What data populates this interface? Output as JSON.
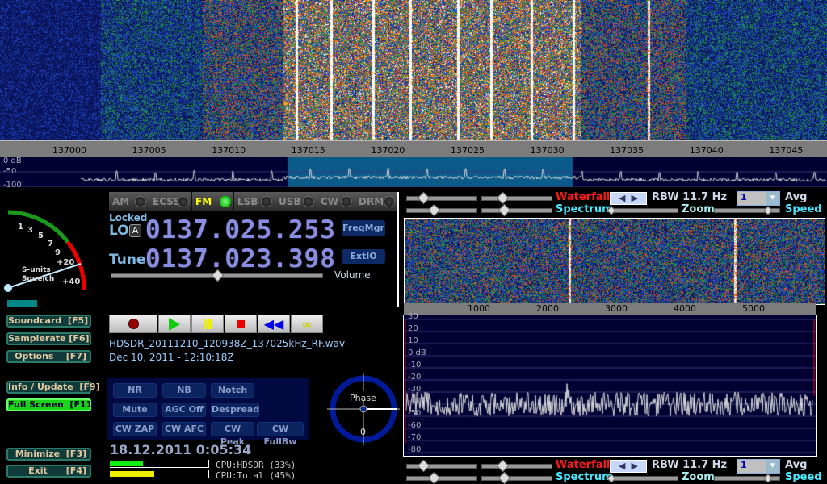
{
  "main_waterfall": {
    "freq_axis_labels": [
      "137000",
      "137005",
      "137010",
      "137015",
      "137020",
      "137025",
      "137030",
      "137035",
      "137040",
      "137045"
    ],
    "db_labels": [
      "0 dB",
      "-50",
      "-100"
    ],
    "passband_khz": [
      137013.6,
      137031.5
    ]
  },
  "smeter": {
    "scale_labels": [
      "1",
      "3",
      "5",
      "7",
      "9",
      "+20",
      "+40"
    ],
    "caption1": "S-units",
    "caption2": "Squelch"
  },
  "modes": [
    {
      "label": "AM",
      "active": false
    },
    {
      "label": "ECSS",
      "active": false
    },
    {
      "label": "FM",
      "active": true
    },
    {
      "label": "LSB",
      "active": false
    },
    {
      "label": "USB",
      "active": false
    },
    {
      "label": "CW",
      "active": false
    },
    {
      "label": "DRM",
      "active": false
    }
  ],
  "lo": {
    "status": "Locked",
    "label": "LO",
    "lock_badge": "A",
    "frequency": "0137.025.253"
  },
  "tune": {
    "label": "Tune",
    "frequency": "0137.023.398"
  },
  "buttons": {
    "freqmgr": "FreqMgr",
    "extio": "ExtIO",
    "volume": "Volume"
  },
  "volume_level": 0.5,
  "side_buttons": [
    {
      "label": "Soundcard  [F5]",
      "active": false
    },
    {
      "label": "Samplerate [F6]",
      "active": false
    },
    {
      "label": "Options    [F7]",
      "active": false
    },
    {
      "label": "Info / Update  [F9]",
      "active": false
    },
    {
      "label": "Full Screen  [F11]",
      "active": true
    },
    {
      "label": "Minimize  [F3]",
      "active": false
    },
    {
      "label": "Exit      [F4]",
      "active": false
    }
  ],
  "transport_icons": [
    "record-icon",
    "play-icon",
    "pause-icon",
    "stop-icon",
    "rewind-icon",
    "loop-icon"
  ],
  "recording": {
    "filename": "HDSDR_20111210_120938Z_137025kHz_RF.wav",
    "timestamp": "Dec 10, 2011 - 12:10:18Z"
  },
  "dsp_buttons": [
    "NR",
    "NB",
    "Notch",
    "Mute",
    "AGC Off",
    "Despread",
    "CW ZAP",
    "CW AFC",
    "CW Peak",
    "CW FullBw"
  ],
  "phase": {
    "label": "Phase",
    "value": "0"
  },
  "clock": "18.12.2011 0:05:34",
  "cpu": {
    "hdsdr_label": "CPU:HDSDR (33%)",
    "hdsdr_pct": 33,
    "total_label": "CPU:Total (45%)",
    "total_pct": 45
  },
  "audio_panel": {
    "waterfall_label": "Waterfall",
    "spectrum_label": "Spectrum",
    "rbw": "RBW 11.7 Hz",
    "zoom_label": "Zoom",
    "avg_value": "1",
    "avg_label": "Avg",
    "speed_label": "Speed",
    "freq_axis_labels": [
      "1000",
      "2000",
      "3000",
      "4000",
      "5000"
    ],
    "db_labels": [
      "30",
      "20",
      "10",
      "0 dB",
      "-10",
      "-20",
      "-30",
      "-40",
      "-50",
      "-60",
      "-70",
      "-80"
    ]
  },
  "colors": {
    "accent_red": "#ff1a1a",
    "accent_cyan": "#4ae8ff",
    "freq_display": "#8a8ee0",
    "spectrum_bg": "#000033",
    "passband": "#0a5a8a"
  }
}
